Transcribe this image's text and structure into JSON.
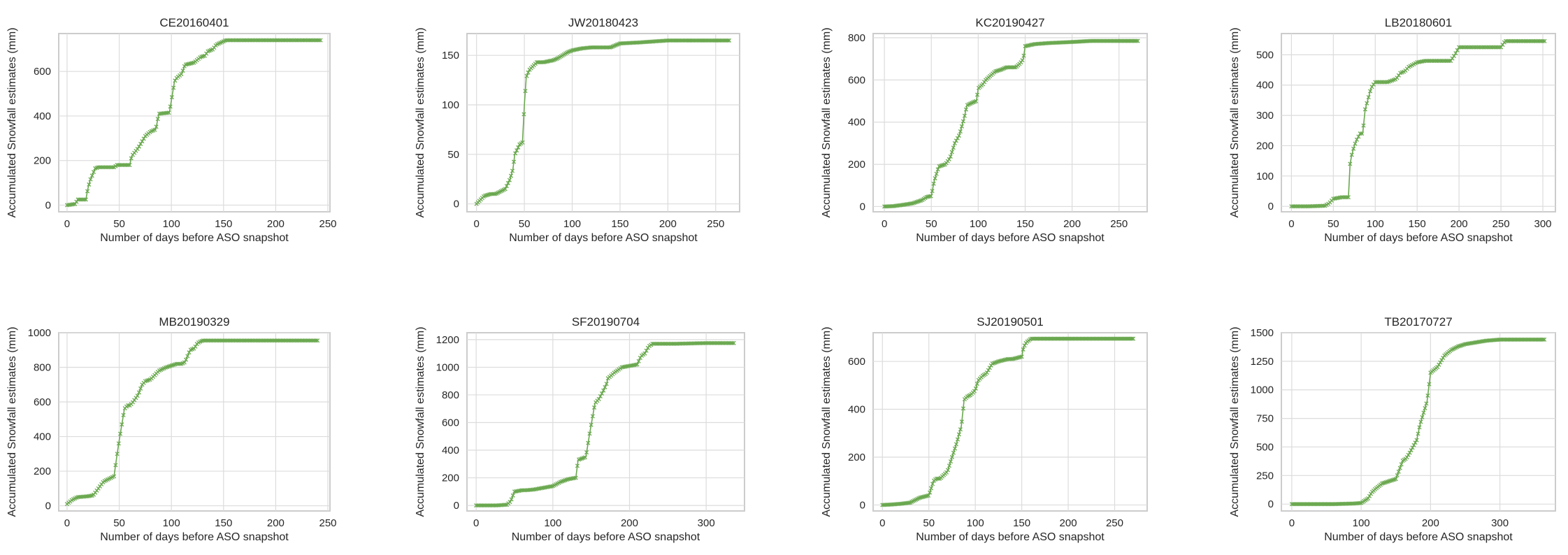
{
  "figure": {
    "series_color": "#6aa84f",
    "marker": "x"
  },
  "chart_data": [
    {
      "type": "line",
      "title": "CE20160401",
      "xlabel": "Number of days before ASO snapshot",
      "ylabel": "Accumulated Snowfall estimates (mm)",
      "xlim": [
        -8,
        252
      ],
      "ylim": [
        -30,
        770
      ],
      "xticks": [
        0,
        50,
        100,
        150,
        200,
        250
      ],
      "yticks": [
        0,
        200,
        400,
        600
      ],
      "grid": true,
      "series": [
        {
          "x": [
            0,
            8,
            10,
            18,
            20,
            22,
            27,
            30,
            32,
            45,
            48,
            50,
            60,
            62,
            68,
            75,
            80,
            85,
            88,
            98,
            100,
            103,
            105,
            110,
            113,
            118,
            122,
            128,
            132,
            135,
            140,
            143,
            150,
            152,
            155,
            200,
            243
          ],
          "y": [
            0,
            5,
            25,
            25,
            75,
            110,
            165,
            170,
            170,
            170,
            180,
            180,
            180,
            220,
            255,
            310,
            330,
            340,
            410,
            415,
            470,
            555,
            570,
            590,
            630,
            635,
            640,
            665,
            670,
            690,
            700,
            720,
            735,
            740,
            740,
            740,
            740
          ]
        }
      ]
    },
    {
      "type": "line",
      "title": "JW20180423",
      "xlabel": "Number of days before ASO snapshot",
      "ylabel": "Accumulated Snowfall estimates (mm)",
      "xlim": [
        -10,
        275
      ],
      "ylim": [
        -8,
        172
      ],
      "xticks": [
        0,
        50,
        100,
        150,
        200,
        250
      ],
      "yticks": [
        0,
        50,
        100,
        150
      ],
      "grid": true,
      "series": [
        {
          "x": [
            0,
            5,
            8,
            15,
            20,
            30,
            35,
            38,
            40,
            45,
            48,
            50,
            52,
            55,
            60,
            63,
            70,
            80,
            85,
            90,
            95,
            100,
            110,
            120,
            140,
            150,
            170,
            200,
            220,
            265
          ],
          "y": [
            0,
            5,
            8,
            10,
            10,
            15,
            25,
            35,
            50,
            60,
            62,
            100,
            128,
            135,
            140,
            143,
            143,
            145,
            147,
            150,
            153,
            155,
            157,
            158,
            158,
            162,
            163,
            165,
            165,
            165
          ]
        }
      ]
    },
    {
      "type": "line",
      "title": "KC20190427",
      "xlabel": "Number of days before ASO snapshot",
      "ylabel": "Accumulated Snowfall estimates (mm)",
      "xlim": [
        -12,
        280
      ],
      "ylim": [
        -25,
        820
      ],
      "xticks": [
        0,
        50,
        100,
        150,
        200,
        250
      ],
      "yticks": [
        0,
        200,
        400,
        600,
        800
      ],
      "grid": true,
      "series": [
        {
          "x": [
            0,
            10,
            20,
            30,
            40,
            45,
            50,
            53,
            58,
            65,
            70,
            75,
            80,
            85,
            88,
            95,
            98,
            100,
            105,
            108,
            118,
            125,
            130,
            140,
            145,
            148,
            150,
            160,
            175,
            200,
            220,
            270
          ],
          "y": [
            0,
            2,
            8,
            15,
            30,
            45,
            50,
            120,
            190,
            200,
            230,
            300,
            340,
            420,
            480,
            495,
            500,
            560,
            580,
            600,
            640,
            650,
            660,
            660,
            680,
            700,
            760,
            770,
            775,
            780,
            785,
            785
          ]
        }
      ]
    },
    {
      "type": "line",
      "title": "LB20180601",
      "xlabel": "Number of days before ASO snapshot",
      "ylabel": "Accumulated Snowfall estimates (mm)",
      "xlim": [
        -12,
        315
      ],
      "ylim": [
        -18,
        570
      ],
      "xticks": [
        0,
        50,
        100,
        150,
        200,
        250,
        300
      ],
      "yticks": [
        0,
        100,
        200,
        300,
        400,
        500
      ],
      "grid": true,
      "series": [
        {
          "x": [
            0,
            20,
            40,
            45,
            50,
            60,
            68,
            70,
            72,
            75,
            78,
            82,
            85,
            88,
            95,
            100,
            115,
            125,
            130,
            135,
            140,
            150,
            160,
            190,
            195,
            200,
            210,
            250,
            255,
            303
          ],
          "y": [
            0,
            0,
            2,
            10,
            25,
            30,
            30,
            140,
            170,
            200,
            220,
            240,
            240,
            320,
            390,
            410,
            410,
            420,
            440,
            445,
            460,
            475,
            480,
            480,
            500,
            525,
            525,
            525,
            545,
            545
          ]
        }
      ]
    },
    {
      "type": "line",
      "title": "MB20190329",
      "xlabel": "Number of days before ASO snapshot",
      "ylabel": "Accumulated Snowfall estimates (mm)",
      "xlim": [
        -8,
        252
      ],
      "ylim": [
        -30,
        1000
      ],
      "xticks": [
        0,
        50,
        100,
        150,
        200,
        250
      ],
      "yticks": [
        0,
        200,
        400,
        600,
        800,
        1000
      ],
      "grid": true,
      "series": [
        {
          "x": [
            0,
            5,
            10,
            20,
            25,
            30,
            35,
            45,
            48,
            50,
            55,
            58,
            60,
            62,
            68,
            72,
            75,
            80,
            88,
            95,
            100,
            105,
            110,
            113,
            118,
            122,
            125,
            128,
            130,
            140,
            240
          ],
          "y": [
            10,
            35,
            50,
            55,
            60,
            100,
            140,
            170,
            300,
            380,
            560,
            580,
            580,
            590,
            640,
            700,
            720,
            730,
            780,
            800,
            810,
            820,
            820,
            830,
            900,
            910,
            940,
            950,
            955,
            955,
            955
          ]
        }
      ]
    },
    {
      "type": "line",
      "title": "SF20190704",
      "xlabel": "Number of days before ASO snapshot",
      "ylabel": "Accumulated Snowfall estimates (mm)",
      "xlim": [
        -12,
        350
      ],
      "ylim": [
        -40,
        1250
      ],
      "xticks": [
        0,
        100,
        200,
        300
      ],
      "yticks": [
        0,
        200,
        400,
        600,
        800,
        1000,
        1200
      ],
      "grid": true,
      "series": [
        {
          "x": [
            0,
            25,
            40,
            45,
            50,
            60,
            65,
            75,
            90,
            100,
            110,
            120,
            130,
            133,
            143,
            148,
            155,
            160,
            165,
            170,
            172,
            180,
            185,
            190,
            200,
            210,
            215,
            220,
            225,
            230,
            260,
            300,
            337
          ],
          "y": [
            0,
            0,
            5,
            30,
            100,
            110,
            110,
            115,
            130,
            140,
            170,
            190,
            200,
            330,
            350,
            520,
            740,
            770,
            820,
            880,
            920,
            960,
            980,
            1000,
            1010,
            1020,
            1080,
            1100,
            1150,
            1170,
            1170,
            1175,
            1175
          ]
        }
      ]
    },
    {
      "type": "line",
      "title": "SJ20190501",
      "xlabel": "Number of days before ASO snapshot",
      "ylabel": "Accumulated Snowfall estimates (mm)",
      "xlim": [
        -10,
        285
      ],
      "ylim": [
        -25,
        720
      ],
      "xticks": [
        0,
        50,
        100,
        150,
        200,
        250
      ],
      "yticks": [
        0,
        200,
        400,
        600
      ],
      "grid": true,
      "series": [
        {
          "x": [
            0,
            10,
            20,
            30,
            40,
            50,
            55,
            58,
            62,
            70,
            75,
            80,
            85,
            88,
            92,
            95,
            100,
            103,
            108,
            112,
            118,
            125,
            130,
            135,
            140,
            150,
            152,
            155,
            160,
            200,
            270
          ],
          "y": [
            0,
            2,
            5,
            10,
            30,
            40,
            100,
            110,
            110,
            140,
            200,
            260,
            330,
            440,
            455,
            460,
            480,
            520,
            540,
            550,
            590,
            600,
            605,
            610,
            610,
            620,
            660,
            680,
            695,
            695,
            695
          ]
        }
      ]
    },
    {
      "type": "line",
      "title": "TB20170727",
      "xlabel": "Number of days before ASO snapshot",
      "ylabel": "Accumulated Snowfall estimates (mm)",
      "xlim": [
        -15,
        380
      ],
      "ylim": [
        -60,
        1500
      ],
      "xticks": [
        0,
        100,
        200,
        300
      ],
      "yticks": [
        0,
        250,
        500,
        750,
        1000,
        1250,
        1500
      ],
      "grid": true,
      "series": [
        {
          "x": [
            0,
            20,
            60,
            90,
            100,
            110,
            115,
            120,
            130,
            140,
            150,
            155,
            160,
            165,
            170,
            180,
            185,
            190,
            195,
            200,
            210,
            220,
            230,
            240,
            250,
            270,
            280,
            300,
            330,
            365
          ],
          "y": [
            0,
            0,
            0,
            5,
            10,
            50,
            100,
            130,
            180,
            200,
            220,
            300,
            380,
            400,
            450,
            560,
            700,
            800,
            900,
            1150,
            1200,
            1300,
            1350,
            1380,
            1400,
            1420,
            1430,
            1440,
            1440,
            1440
          ]
        }
      ]
    }
  ]
}
